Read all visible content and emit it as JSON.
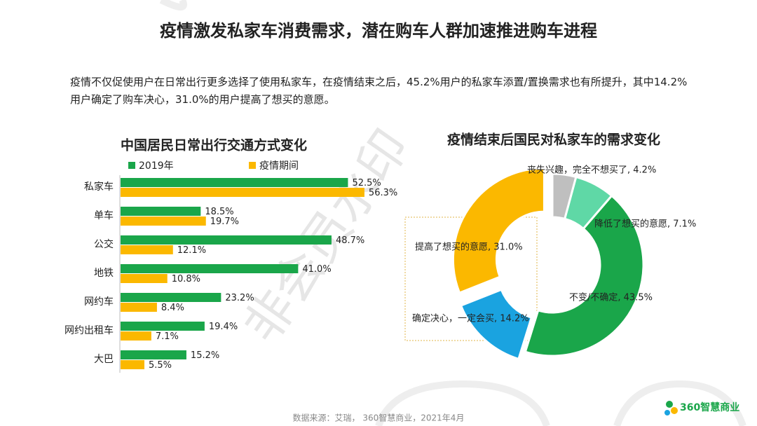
{
  "header": {
    "title": "疫情激发私家车消费需求，潜在购车人群加速推进购车进程",
    "description": "疫情不仅促使用户在日常出行更多选择了使用私家车，在疫情结束之后，45.2%用户的私家车添置/置换需求也有所提升，其中14.2%用户确定了购车决心，31.0%的用户提高了想买的意愿。"
  },
  "chart_data": [
    {
      "type": "bar",
      "orientation": "horizontal",
      "title": "中国居民日常出行交通方式变化",
      "categories": [
        "私家车",
        "单车",
        "公交",
        "地铁",
        "网约车",
        "网约出租车",
        "大巴"
      ],
      "series": [
        {
          "name": "2019年",
          "color": "#1aa64a",
          "values": [
            52.5,
            18.5,
            48.7,
            41.0,
            23.2,
            19.4,
            15.2
          ],
          "value_labels": [
            "52.5%",
            "18.5%",
            "48.7%",
            "41.0%",
            "23.2%",
            "19.4%",
            "15.2%"
          ]
        },
        {
          "name": "疫情期间",
          "color": "#fbb800",
          "values": [
            56.3,
            19.7,
            12.1,
            10.8,
            8.4,
            7.1,
            5.5
          ],
          "value_labels": [
            "56.3%",
            "19.7%",
            "12.1%",
            "10.8%",
            "8.4%",
            "7.1%",
            "5.5%"
          ]
        }
      ]
    },
    {
      "type": "donut",
      "title": "疫情结束后国民对私家车的需求变化",
      "labels": [
        "丧失兴趣，完全不想买了, 4.2%",
        "降低了想买的意愿, 7.1%",
        "不变/不确定, 43.5%",
        "确定决心，一定会买, 14.2%",
        "提高了想买的意愿, 31.0%"
      ],
      "values": [
        4.2,
        7.1,
        43.5,
        14.2,
        31.0
      ],
      "colors": [
        "#bfbfbf",
        "#5fd8a6",
        "#1aa64a",
        "#1aa3e0",
        "#fbb800"
      ],
      "exploded": [
        false,
        false,
        false,
        true,
        true
      ]
    }
  ],
  "source": "数据来源：艾瑞， 360智慧商业，2021年4月",
  "logo": "360智慧商业",
  "watermark": "非会员水印"
}
